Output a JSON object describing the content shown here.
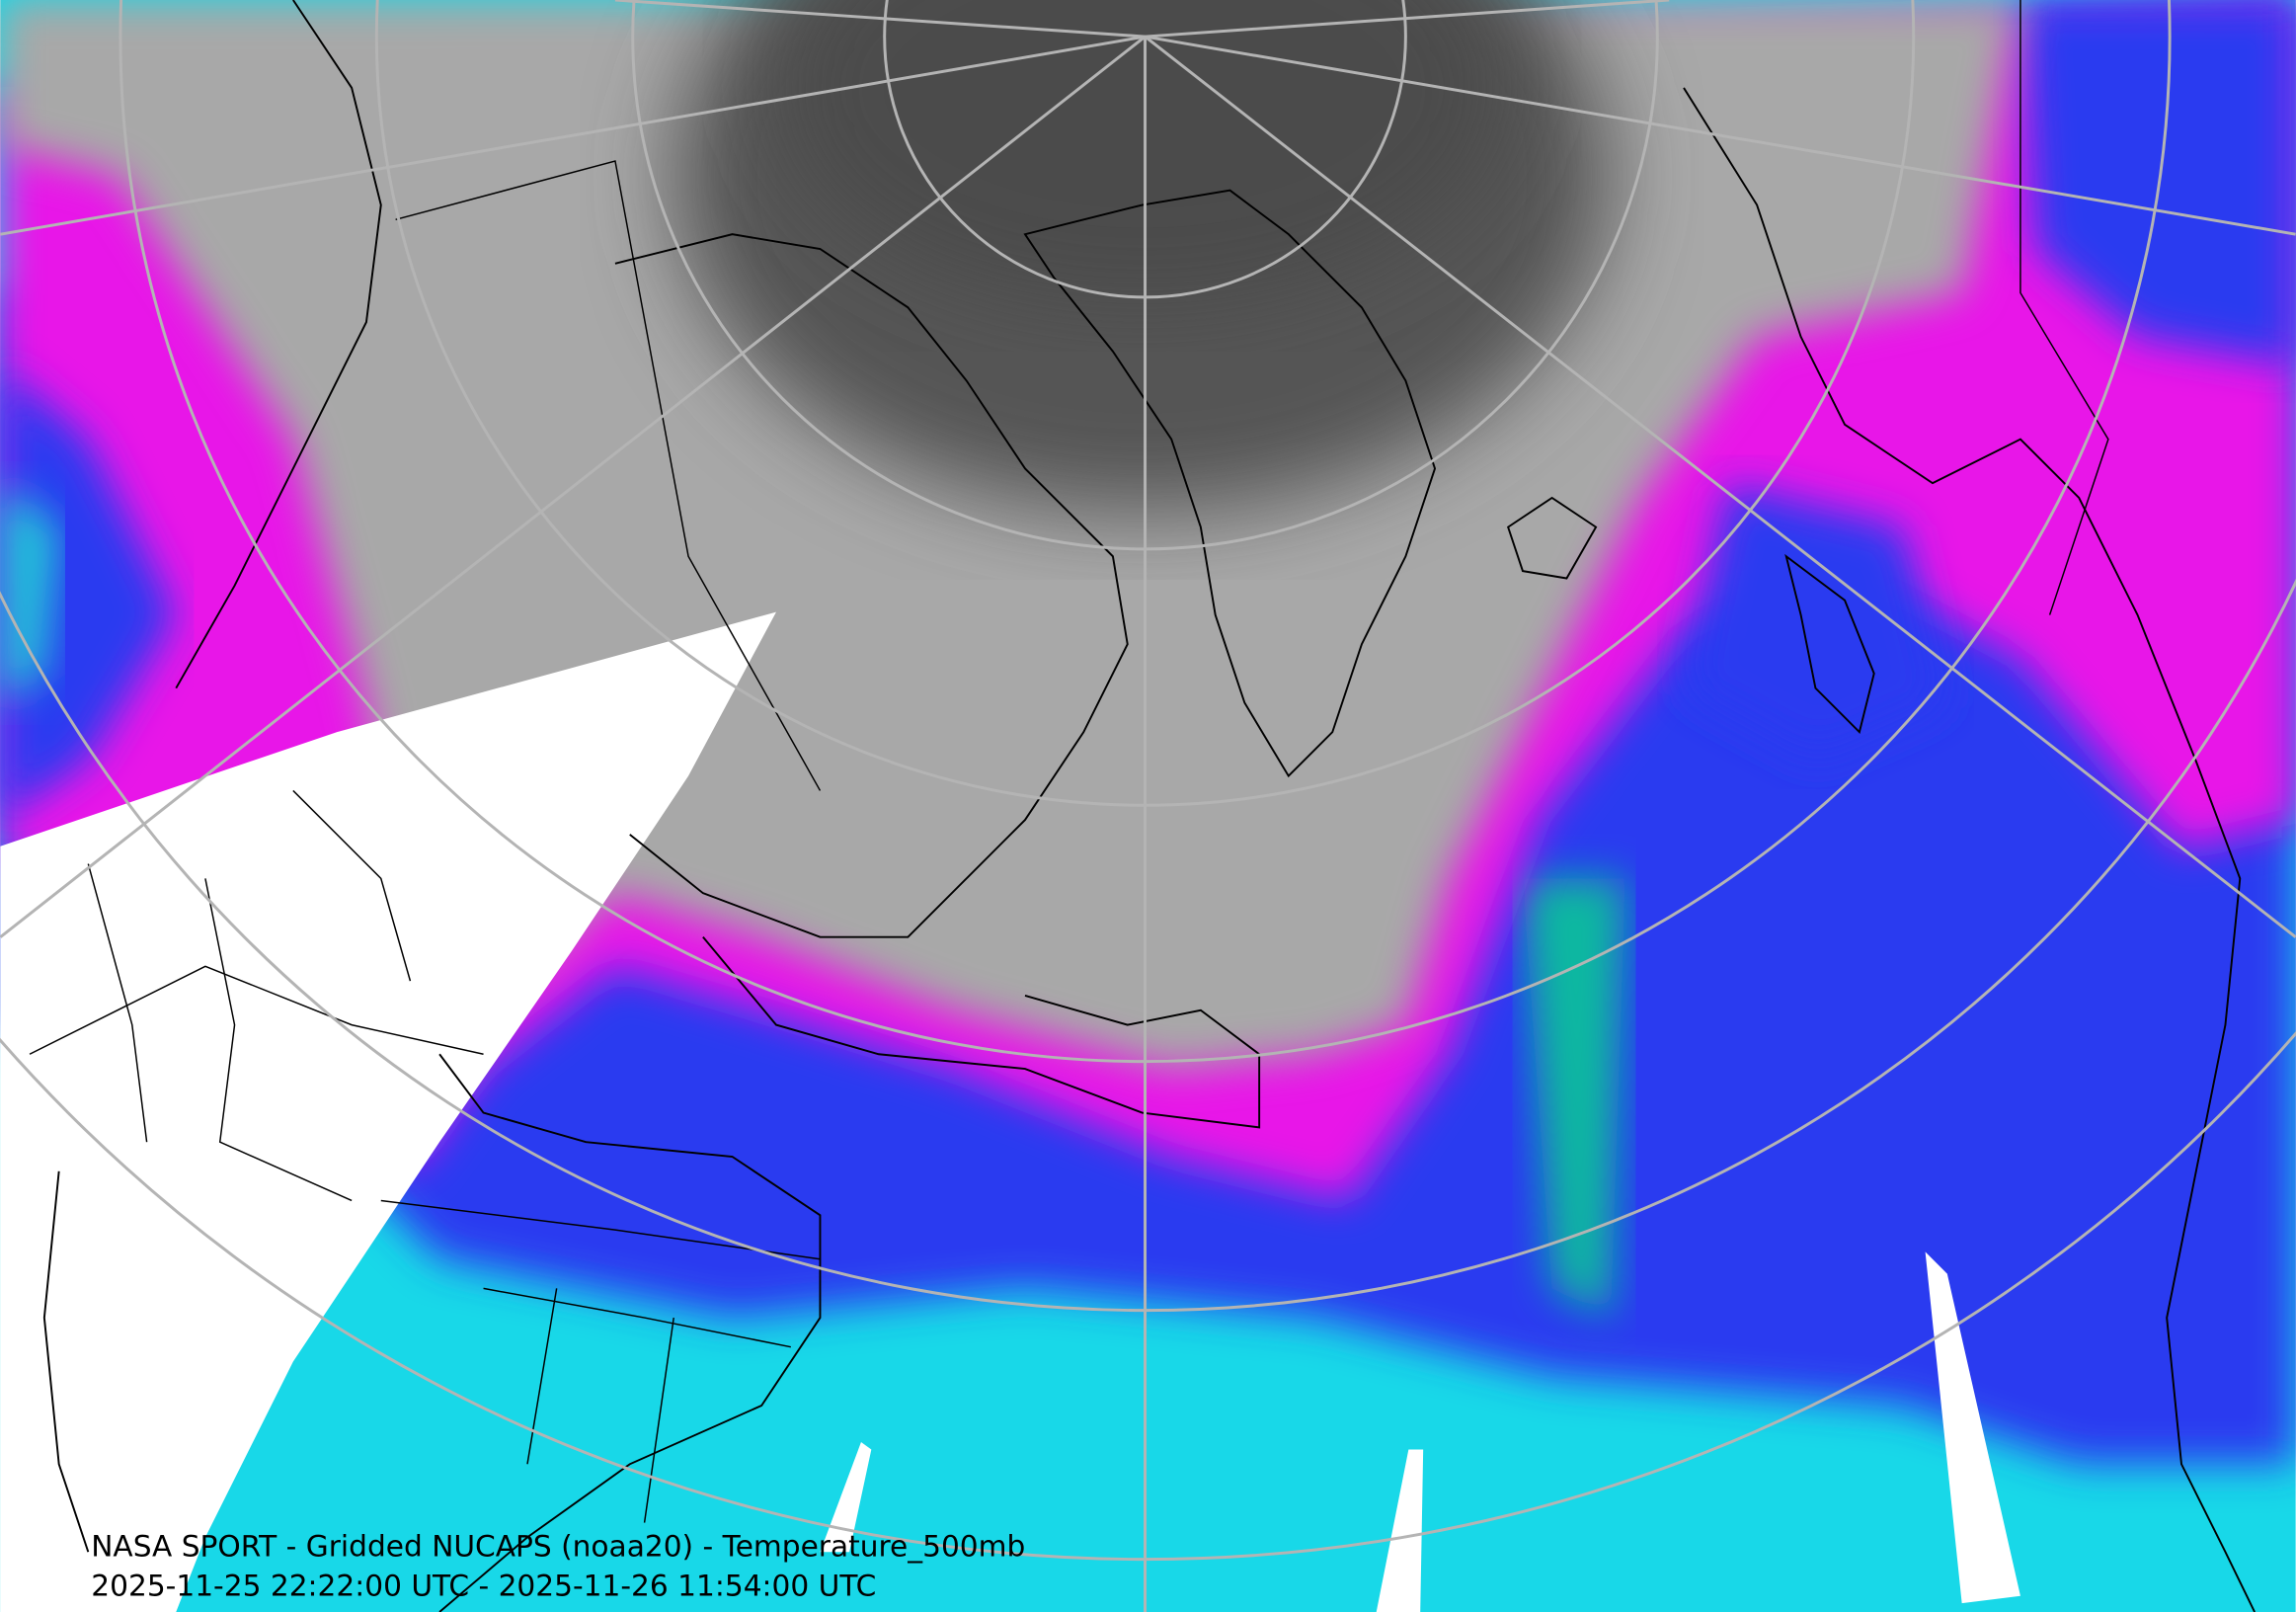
{
  "map": {
    "title": "NASA SPORT - Gridded NUCAPS (noaa20) - Temperature_500mb",
    "time_range": "2025-11-25 22:22:00 UTC - 2025-11-26 11:54:00 UTC"
  }
}
